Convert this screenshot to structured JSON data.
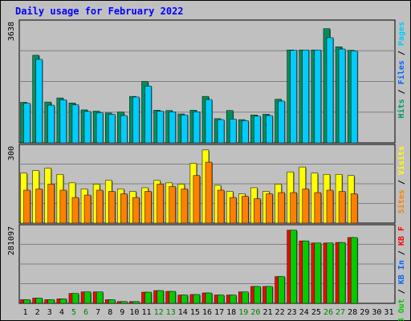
{
  "chart_data": {
    "type": "bar",
    "title": "Daily usage for February 2022",
    "categories": [
      "1",
      "2",
      "3",
      "4",
      "5",
      "6",
      "7",
      "8",
      "9",
      "10",
      "11",
      "12",
      "13",
      "14",
      "15",
      "16",
      "17",
      "18",
      "19",
      "20",
      "21",
      "22",
      "23",
      "24",
      "25",
      "26",
      "27",
      "28",
      "29",
      "30",
      "31"
    ],
    "weekend_days": [
      "5",
      "6",
      "12",
      "13",
      "19",
      "20",
      "26",
      "27"
    ],
    "panels": [
      {
        "name": "hits-files",
        "max_label": "3638",
        "ylim": [
          0,
          3638
        ],
        "grid": true,
        "legend": [
          {
            "label": "Pages",
            "color": "#00ccff"
          },
          {
            "label": "Files",
            "color": "#0066ff"
          },
          {
            "label": "Hits",
            "color": "#009966"
          }
        ],
        "series": [
          {
            "name": "Hits",
            "color": "#008f5a",
            "values": [
              1290,
              2790,
              1300,
              1430,
              1270,
              1050,
              1010,
              950,
              980,
              1480,
              1950,
              1040,
              1030,
              920,
              1040,
              1480,
              770,
              1030,
              740,
              890,
              910,
              1390,
              2960,
              2960,
              2960,
              3638,
              3060,
              2950
            ]
          },
          {
            "name": "Files",
            "color": "#00ccff",
            "values": [
              1260,
              2660,
              1200,
              1370,
              1210,
              1000,
              960,
              910,
              870,
              1460,
              1810,
              1010,
              990,
              890,
              990,
              1380,
              740,
              760,
              710,
              850,
              870,
              1330,
              2950,
              2960,
              2960,
              3350,
              2990,
              2930
            ]
          }
        ]
      },
      {
        "name": "visits-sites",
        "max_label": "300",
        "ylim": [
          0,
          300
        ],
        "grid": true,
        "legend": [
          {
            "label": "Visits",
            "color": "#ffff00"
          },
          {
            "label": "Sites",
            "color": "#ff8000"
          }
        ],
        "series": [
          {
            "name": "Visits",
            "color": "#ffff00",
            "values": [
              205,
              215,
              225,
              200,
              165,
              140,
              160,
              175,
              140,
              130,
              145,
              175,
              165,
              160,
              245,
              300,
              155,
              130,
              120,
              145,
              130,
              160,
              210,
              230,
              205,
              200,
              200,
              195
            ]
          },
          {
            "name": "Sites",
            "color": "#ff8000",
            "values": [
              135,
              140,
              160,
              135,
              105,
              115,
              135,
              130,
              120,
              105,
              130,
              160,
              150,
              140,
              195,
              250,
              135,
              105,
              110,
              100,
              120,
              125,
              125,
              140,
              125,
              135,
              130,
              120
            ]
          }
        ]
      },
      {
        "name": "kbytes",
        "max_label": "281097",
        "ylim": [
          0,
          281097
        ],
        "grid": true,
        "legend": [
          {
            "label": "KB F",
            "color": "#ff0000"
          },
          {
            "label": "KB In",
            "color": "#0066ff"
          },
          {
            "label": "KB Out",
            "color": "#00cc00"
          }
        ],
        "series": [
          {
            "name": "KB F",
            "color": "#ff0000",
            "values": [
              14000,
              20000,
              14000,
              17000,
              38000,
              44000,
              44000,
              14000,
              7000,
              7000,
              43000,
              49000,
              46000,
              32000,
              34000,
              40000,
              32000,
              32000,
              44000,
              65000,
              65000,
              103000,
              281097,
              240000,
              232000,
              232000,
              234000,
              253000
            ]
          },
          {
            "name": "KB Out",
            "color": "#00cc00",
            "values": [
              14000,
              20000,
              14000,
              17000,
              38000,
              44000,
              44000,
              14000,
              7000,
              7000,
              43000,
              49000,
              46000,
              32000,
              34000,
              40000,
              32000,
              32000,
              44000,
              65000,
              65000,
              103000,
              281097,
              240000,
              232000,
              232000,
              234000,
              253000
            ]
          }
        ]
      }
    ]
  }
}
